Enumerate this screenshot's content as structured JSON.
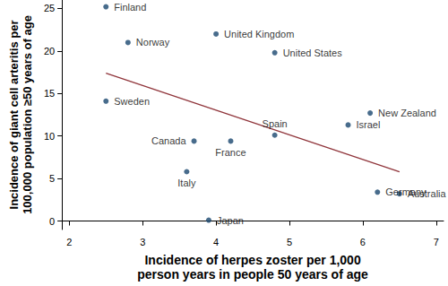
{
  "chart_data": {
    "type": "scatter",
    "x_label": "Incidence of herpes zoster per 1,000\nperson years in people 50 years of age",
    "y_label": "Incidence of giant cell arteritis per\n100,000 population ≥50 years of age",
    "xlim": [
      1.9,
      7.1
    ],
    "xticks": [
      2,
      3,
      4,
      5,
      6,
      7
    ],
    "ylim": [
      -1,
      26
    ],
    "yticks": [
      0,
      5,
      10,
      15,
      20,
      25
    ],
    "grid": false,
    "series": [
      {
        "type": "scatter",
        "color": "#1a476f",
        "marker": "circle",
        "labels": [
          "Finland",
          "Norway",
          "United Kingdom",
          "United States",
          "Sweden",
          "New Zealand",
          "Israel",
          "Canada",
          "France",
          "Spain",
          "Italy",
          "Germany",
          "Australia",
          "Japan"
        ],
        "x": [
          2.5,
          2.8,
          4.0,
          4.8,
          2.5,
          6.1,
          5.8,
          3.7,
          4.2,
          4.8,
          3.6,
          6.2,
          6.5,
          3.9
        ],
        "values": [
          25.2,
          21,
          22,
          19.8,
          14.1,
          12.7,
          11.3,
          9.4,
          9.4,
          10.1,
          5.8,
          3.4,
          3.2,
          0.1
        ]
      },
      {
        "type": "line",
        "color": "#90353b",
        "line_style": "solid",
        "x": [
          2.5,
          6.5
        ],
        "values": [
          17.4,
          5.8
        ]
      }
    ]
  }
}
